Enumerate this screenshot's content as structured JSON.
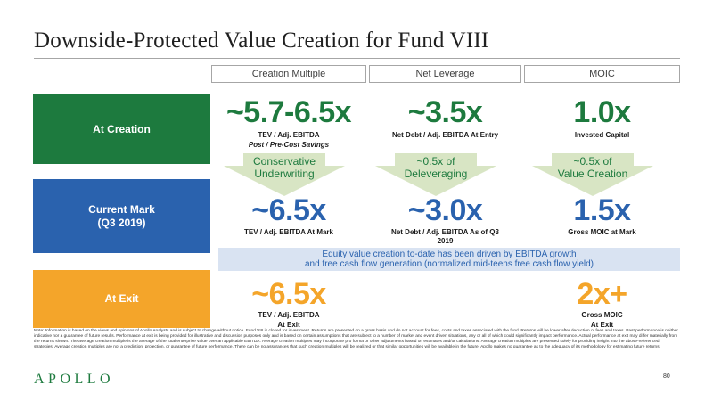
{
  "title": "Downside-Protected Value Creation for Fund VIII",
  "columns": [
    "Creation Multiple",
    "Net Leverage",
    "MOIC"
  ],
  "rows": {
    "creation": {
      "label": "At Creation",
      "color": "#1d7a3e",
      "cells": [
        {
          "value": "~5.7-6.5x",
          "sub1": "TEV / Adj. EBITDA",
          "sub2": "Post / Pre-Cost Savings"
        },
        {
          "value": "~3.5x",
          "sub1": "Net Debt / Adj. EBITDA At Entry"
        },
        {
          "value": "1.0x",
          "sub1": "Invested Capital"
        }
      ]
    },
    "current": {
      "label_line1": "Current Mark",
      "label_line2": "(Q3 2019)",
      "color": "#2a62ae",
      "cells": [
        {
          "value": "~6.5x",
          "sub1": "TEV / Adj. EBITDA At Mark"
        },
        {
          "value": "~3.0x",
          "sub1": "Net Debt / Adj. EBITDA As of Q3",
          "sub2": "2019"
        },
        {
          "value": "1.5x",
          "sub1": "Gross MOIC at Mark"
        }
      ]
    },
    "exit": {
      "label": "At Exit",
      "color": "#f4a52a",
      "cells": [
        {
          "value": "~6.5x",
          "sub1": "TEV / Adj. EBITDA",
          "sub2": "At Exit"
        },
        {
          "value": "2x+",
          "sub1": "Gross MOIC",
          "sub2": "At Exit"
        }
      ]
    }
  },
  "arrows": [
    {
      "line1": "Conservative",
      "line2": "Underwriting"
    },
    {
      "line1": "~0.5x of",
      "line2": "Deleveraging"
    },
    {
      "line1": "~0.5x of",
      "line2": "Value Creation"
    }
  ],
  "banner": {
    "line1": "Equity value creation to-date has been driven by EBITDA growth",
    "line2": "and free cash flow generation (normalized mid-teens free cash flow yield)"
  },
  "note": "Note: Information is based on the views and opinions of Apollo Analysts and is subject to change without notice. Fund VIII is closed for investment. Returns are presented on a gross basis and do not account for fees, costs and taxes associated with the fund. Returns will be lower after deduction of fees and taxes. Past performance is neither indicative nor a guarantee of future results. Performance at exit is being provided for illustrative and discussion purposes only and is based on certain assumptions that are subject to a number of market and event driven situations, any or all of which could significantly impact performance. Actual performance at exit may differ materially from the returns shown. The average creation multiple is the average of the total enterprise value over an applicable EBITDA. Average creation multiples may incorporate pro forma or other adjustments based on estimates and/or calculations. Average creation multiples are presented solely for providing insight into the above-referenced strategies. Average creation multiples are not a prediction, projection, or guarantee of future performance. There can be no assurances that such creation multiples will be realized or that similar opportunities will be available in the future. Apollo makes no guarantee as to the adequacy of its methodology for estimating future returns.",
  "logo": "APOLLO",
  "page_number": "80",
  "colors": {
    "green": "#1d7a3e",
    "blue": "#2a62ae",
    "orange": "#f4a52a",
    "arrow_fill": "#d8e5c4",
    "banner_bg": "#d9e3f2"
  }
}
